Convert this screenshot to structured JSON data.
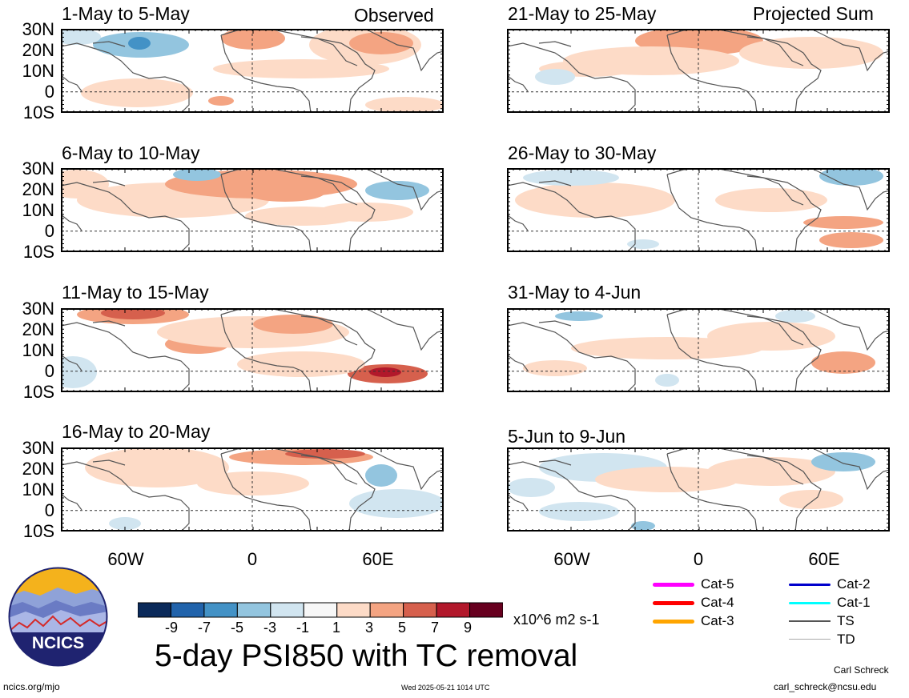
{
  "panels_left": [
    {
      "title": "1-May to 5-May",
      "tag": "Observed"
    },
    {
      "title": "6-May to 10-May",
      "tag": ""
    },
    {
      "title": "11-May to 15-May",
      "tag": ""
    },
    {
      "title": "16-May to 20-May",
      "tag": ""
    }
  ],
  "panels_right": [
    {
      "title": "21-May to 25-May",
      "tag": "Projected Sum"
    },
    {
      "title": "26-May to 30-May",
      "tag": ""
    },
    {
      "title": "31-May to 4-Jun",
      "tag": ""
    },
    {
      "title": "5-Jun to 9-Jun",
      "tag": ""
    }
  ],
  "lat_labels": [
    "30N",
    "20N",
    "10N",
    "0",
    "10S"
  ],
  "lon_labels": [
    "60W",
    "0",
    "60E"
  ],
  "colorbar": {
    "labels": [
      "-9",
      "-7",
      "-5",
      "-3",
      "-1",
      "1",
      "3",
      "5",
      "7",
      "9"
    ],
    "colors": [
      "#0b2a5a",
      "#2163ab",
      "#4392c6",
      "#93c5df",
      "#d1e5f0",
      "#f7f7f7",
      "#fddbc7",
      "#f4a482",
      "#d6604d",
      "#b2182b",
      "#67001f"
    ],
    "units": "x10^6 m2 s-1"
  },
  "legend": [
    {
      "label": "Cat-5",
      "color": "#ff00ff"
    },
    {
      "label": "Cat-4",
      "color": "#ff0000"
    },
    {
      "label": "Cat-3",
      "color": "#ffa500"
    },
    {
      "label": "Cat-2",
      "color": "#0000cc"
    },
    {
      "label": "Cat-1",
      "color": "#00ffff"
    },
    {
      "label": "TS",
      "color": "#555555"
    },
    {
      "label": "TD",
      "color": "#aaaaaa"
    }
  ],
  "logo": {
    "text": "NCICS"
  },
  "main_title": "5-day PSI850 with TC removal",
  "footer": {
    "website": "ncics.org/mjo",
    "timestamp": "Wed 2025-05-21 1014 UTC",
    "author": "Carl Schreck",
    "email": "carl_schreck@ncsu.edu"
  }
}
